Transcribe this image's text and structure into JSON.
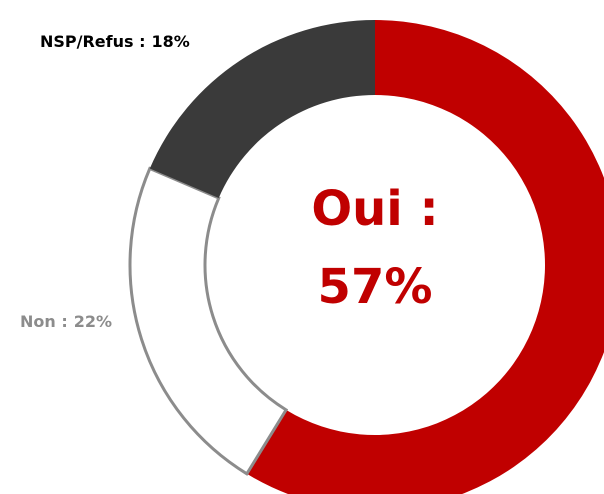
{
  "chart_data": {
    "type": "donut",
    "categories": [
      "Oui :",
      "Non :",
      "NSP/Refus :"
    ],
    "values": [
      57,
      22,
      18
    ],
    "value_labels": [
      "57%",
      "22%",
      "18%"
    ],
    "colors": [
      "#c00000",
      "#ffffff",
      "#3a3a3a"
    ],
    "label_colors": [
      "#c00000",
      "#8c8c8c",
      "#000000"
    ]
  }
}
